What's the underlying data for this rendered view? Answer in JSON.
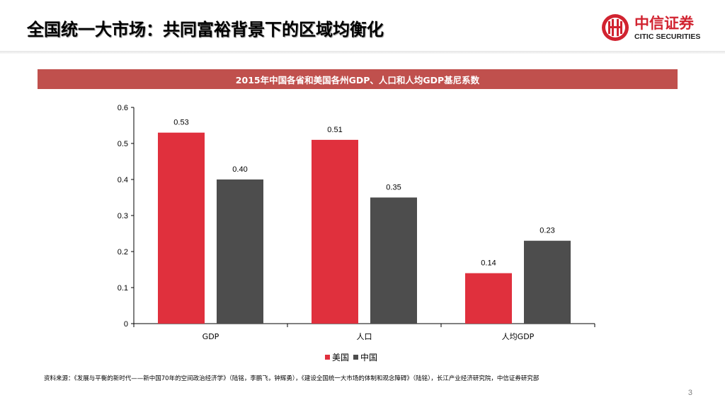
{
  "header": {
    "title": "全国统一大市场：共同富裕背景下的区域均衡化"
  },
  "logo": {
    "name_cn": "中信证券",
    "name_en": "CITIC SECURITIES"
  },
  "banner": {
    "title": "2015年中国各省和美国各州GDP、人口和人均GDP基尼系数"
  },
  "chart_data": {
    "type": "bar",
    "title": "2015年中国各省和美国各州GDP、人口和人均GDP基尼系数",
    "categories": [
      "GDP",
      "人口",
      "人均GDP"
    ],
    "series": [
      {
        "name": "美国",
        "values": [
          0.53,
          0.51,
          0.14
        ],
        "labels": [
          "0.53",
          "0.51",
          "0.14"
        ],
        "color": "#e0303d"
      },
      {
        "name": "中国",
        "values": [
          0.4,
          0.35,
          0.23
        ],
        "labels": [
          "0.40",
          "0.35",
          "0.23"
        ],
        "color": "#4d4d4d"
      }
    ],
    "ylim": [
      0,
      0.6
    ],
    "yticks": [
      0,
      0.1,
      0.2,
      0.3,
      0.4,
      0.5,
      0.6
    ],
    "ytick_labels": [
      "0",
      "0.1",
      "0.2",
      "0.3",
      "0.4",
      "0.5",
      "0.6"
    ],
    "xlabel": "",
    "ylabel": "",
    "grid": false,
    "legend_position": "bottom-center"
  },
  "source": {
    "text": "资料来源：《发展与平衡的新时代——新中国70年的空间政治经济学》（陆铭，李鹏飞，钟辉勇），《建设全国统一大市场的体制和观念障碍》（陆铭），长江产业经济研究院，中信证券研究部"
  },
  "page": {
    "number": "3"
  }
}
